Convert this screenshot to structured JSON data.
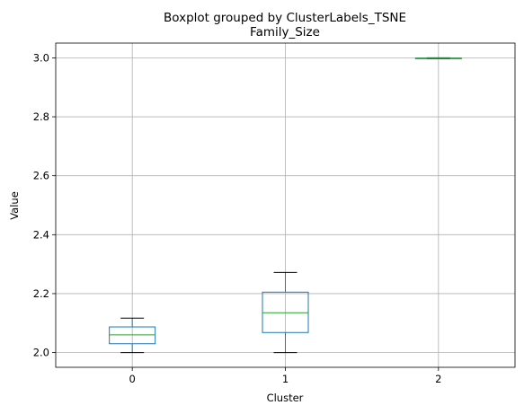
{
  "chart_data": {
    "type": "boxplot",
    "suptitle": "Boxplot grouped by ClusterLabels_TSNE",
    "title": "Family_Size",
    "xlabel": "Cluster",
    "ylabel": "Value",
    "ylim": [
      1.95,
      3.05
    ],
    "yticks": [
      2.0,
      2.2,
      2.4,
      2.6,
      2.8,
      3.0
    ],
    "ytick_labels": [
      "2.0",
      "2.2",
      "2.4",
      "2.6",
      "2.8",
      "3.0"
    ],
    "categories": [
      "0",
      "1",
      "2"
    ],
    "grid": true,
    "boxes": [
      {
        "category": "0",
        "whisker_low": 2.0,
        "q1": 2.03,
        "median": 2.06,
        "q3": 2.087,
        "whisker_high": 2.117
      },
      {
        "category": "1",
        "whisker_low": 2.0,
        "q1": 2.068,
        "median": 2.135,
        "q3": 2.205,
        "whisker_high": 2.272
      },
      {
        "category": "2",
        "whisker_low": 2.997,
        "q1": 2.998,
        "median": 2.999,
        "q3": 2.999,
        "whisker_high": 3.0
      }
    ],
    "colors": {
      "box": "#1f77b4",
      "median": "#2ca02c",
      "whisker": "#1f77b4",
      "cap": "#000000",
      "grid": "#b0b0b0"
    }
  }
}
